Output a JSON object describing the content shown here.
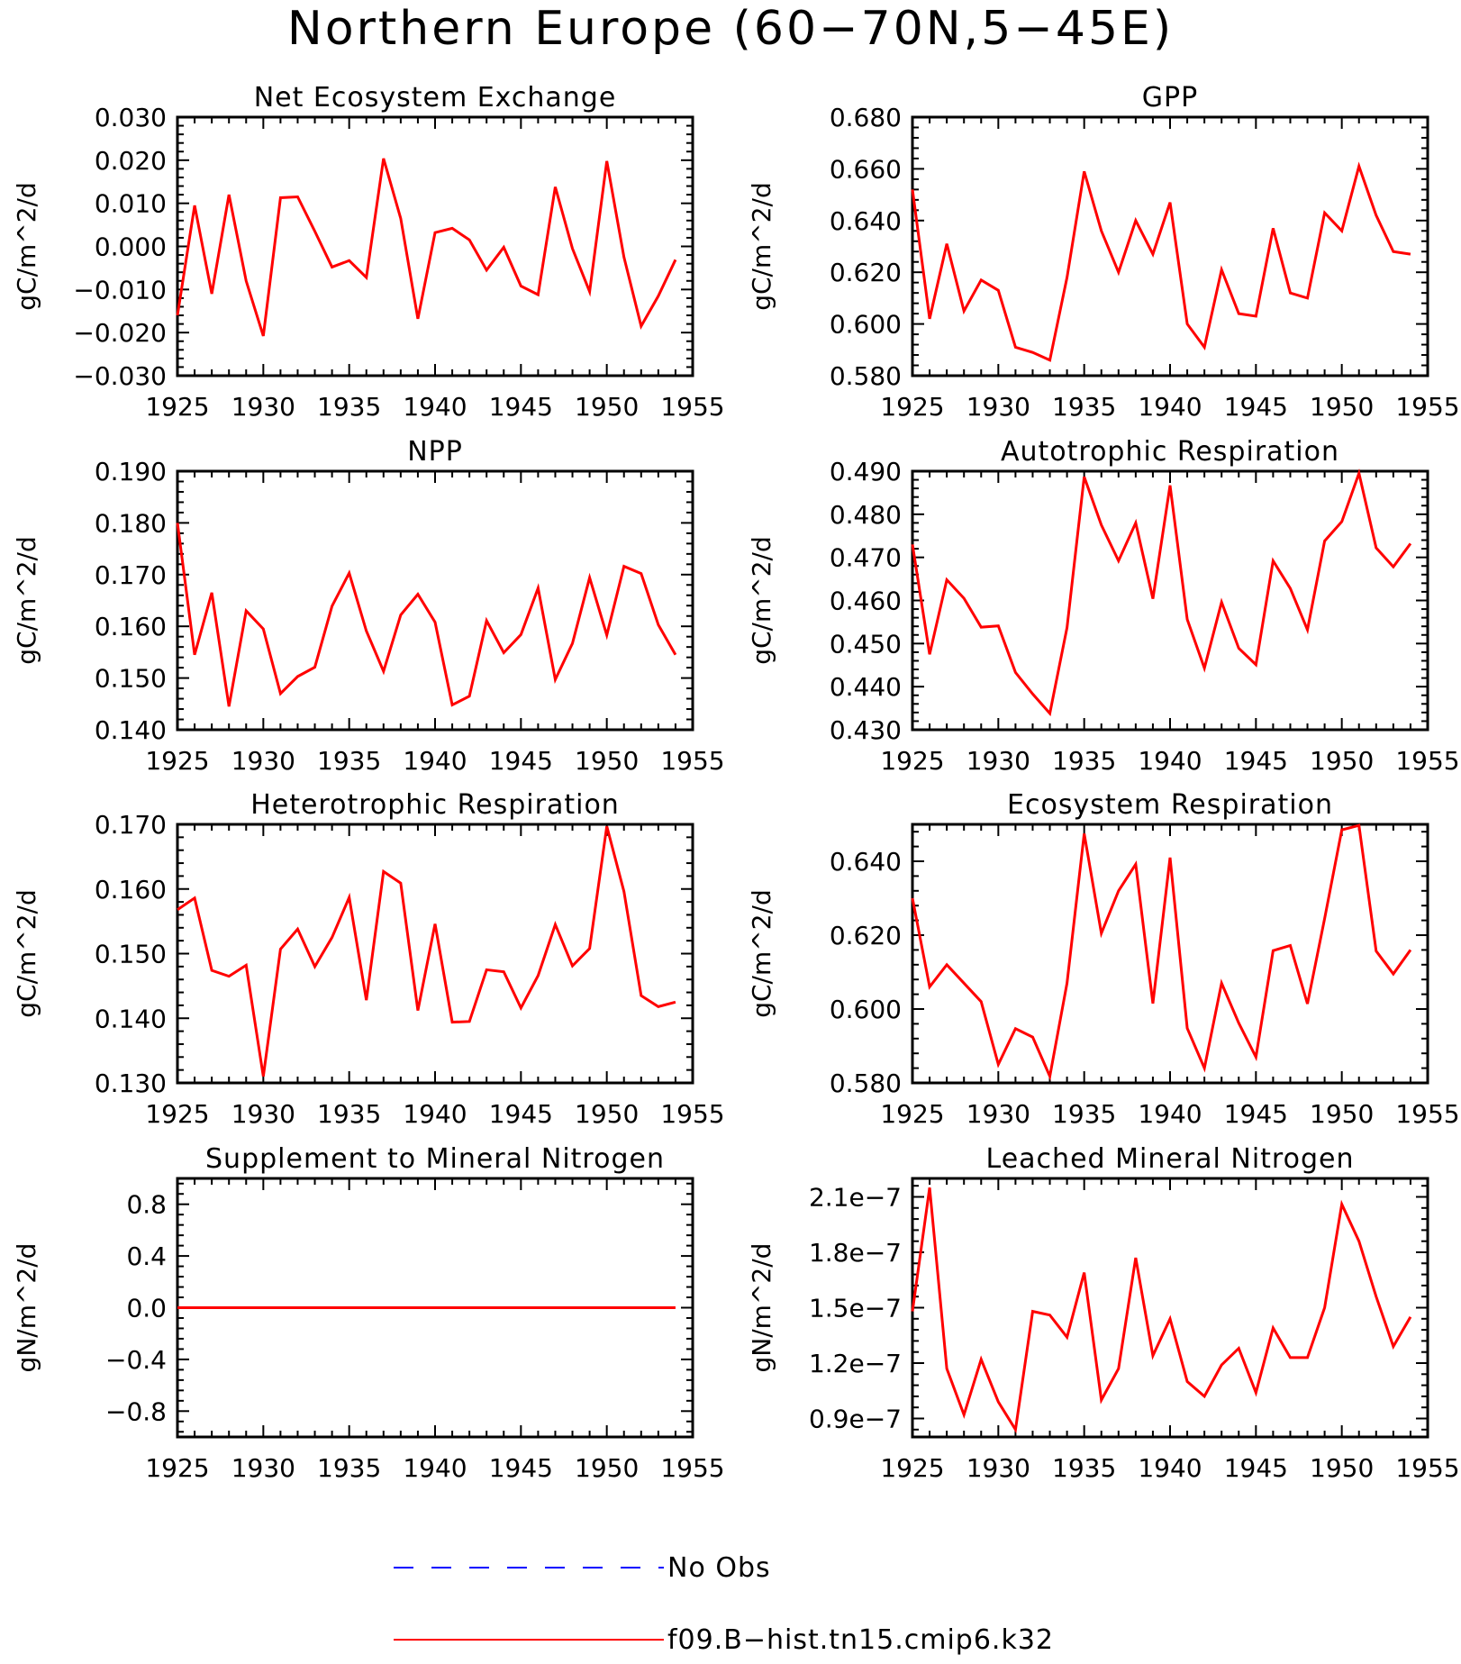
{
  "title": "Northern Europe (60−70N,5−45E)",
  "colors": {
    "model": "#ff0000",
    "obs": "#0000ff",
    "axis": "#000000"
  },
  "legend": {
    "position": "bottom-center",
    "entries": [
      {
        "label": "No Obs",
        "color": "#0000ff",
        "style": "dashed"
      },
      {
        "label": "f09.B−hist.tn15.cmip6.k32",
        "color": "#ff0000",
        "style": "solid"
      }
    ]
  },
  "chart_data": [
    {
      "type": "line",
      "title": "Net Ecosystem Exchange",
      "ylabel": "gC/m^2/d",
      "xlim": [
        1925,
        1955
      ],
      "ylim": [
        -0.03,
        0.03
      ],
      "xticks": [
        1925,
        1930,
        1935,
        1940,
        1945,
        1950,
        1955
      ],
      "yticks": [
        -0.03,
        -0.02,
        -0.01,
        0.0,
        0.01,
        0.02,
        0.03
      ],
      "yticklabels": [
        "−0.030",
        "−0.020",
        "−0.010",
        "0.000",
        "0.010",
        "0.020",
        "0.030"
      ],
      "x": [
        1925,
        1926,
        1927,
        1928,
        1929,
        1930,
        1931,
        1932,
        1933,
        1934,
        1935,
        1936,
        1937,
        1938,
        1939,
        1940,
        1941,
        1942,
        1943,
        1944,
        1945,
        1946,
        1947,
        1948,
        1949,
        1950,
        1951,
        1952,
        1953,
        1954
      ],
      "series": [
        {
          "name": "f09.B−hist.tn15.cmip6.k32",
          "values": [
            -0.016,
            0.0095,
            -0.011,
            0.012,
            -0.008,
            -0.0208,
            0.0113,
            0.0115,
            0.0035,
            -0.0048,
            -0.0033,
            -0.0072,
            0.0204,
            0.0065,
            -0.0168,
            0.0032,
            0.0042,
            0.0015,
            -0.0055,
            -0.0002,
            -0.0092,
            -0.0112,
            0.0138,
            -0.0005,
            -0.0105,
            0.0198,
            -0.0025,
            -0.0185,
            -0.0115,
            -0.0031
          ]
        }
      ]
    },
    {
      "type": "line",
      "title": "GPP",
      "ylabel": "gC/m^2/d",
      "xlim": [
        1925,
        1955
      ],
      "ylim": [
        0.58,
        0.68
      ],
      "xticks": [
        1925,
        1930,
        1935,
        1940,
        1945,
        1950,
        1955
      ],
      "yticks": [
        0.58,
        0.6,
        0.62,
        0.64,
        0.66,
        0.68
      ],
      "yticklabels": [
        "0.580",
        "0.600",
        "0.620",
        "0.640",
        "0.660",
        "0.680"
      ],
      "x": [
        1925,
        1926,
        1927,
        1928,
        1929,
        1930,
        1931,
        1932,
        1933,
        1934,
        1935,
        1936,
        1937,
        1938,
        1939,
        1940,
        1941,
        1942,
        1943,
        1944,
        1945,
        1946,
        1947,
        1948,
        1949,
        1950,
        1951,
        1952,
        1953,
        1954
      ],
      "series": [
        {
          "name": "f09.B−hist.tn15.cmip6.k32",
          "values": [
            0.652,
            0.602,
            0.631,
            0.605,
            0.617,
            0.613,
            0.591,
            0.589,
            0.586,
            0.618,
            0.659,
            0.636,
            0.62,
            0.64,
            0.627,
            0.647,
            0.6,
            0.591,
            0.621,
            0.604,
            0.603,
            0.637,
            0.612,
            0.61,
            0.643,
            0.636,
            0.661,
            0.642,
            0.628,
            0.627
          ]
        }
      ]
    },
    {
      "type": "line",
      "title": "NPP",
      "ylabel": "gC/m^2/d",
      "xlim": [
        1925,
        1955
      ],
      "ylim": [
        0.14,
        0.19
      ],
      "xticks": [
        1925,
        1930,
        1935,
        1940,
        1945,
        1950,
        1955
      ],
      "yticks": [
        0.14,
        0.15,
        0.16,
        0.17,
        0.18,
        0.19
      ],
      "yticklabels": [
        "0.140",
        "0.150",
        "0.160",
        "0.170",
        "0.180",
        "0.190"
      ],
      "x": [
        1925,
        1926,
        1927,
        1928,
        1929,
        1930,
        1931,
        1932,
        1933,
        1934,
        1935,
        1936,
        1937,
        1938,
        1939,
        1940,
        1941,
        1942,
        1943,
        1944,
        1945,
        1946,
        1947,
        1948,
        1949,
        1950,
        1951,
        1952,
        1953,
        1954
      ],
      "series": [
        {
          "name": "f09.B−hist.tn15.cmip6.k32",
          "values": [
            0.18,
            0.1545,
            0.1665,
            0.1445,
            0.163,
            0.1595,
            0.147,
            0.1503,
            0.1521,
            0.1639,
            0.1703,
            0.1591,
            0.1513,
            0.1622,
            0.1662,
            0.1608,
            0.1448,
            0.1465,
            0.1611,
            0.1549,
            0.1584,
            0.1674,
            0.1497,
            0.1567,
            0.1694,
            0.1583,
            0.1716,
            0.1702,
            0.1603,
            0.1545
          ]
        }
      ]
    },
    {
      "type": "line",
      "title": "Autotrophic Respiration",
      "ylabel": "gC/m^2/d",
      "xlim": [
        1925,
        1955
      ],
      "ylim": [
        0.43,
        0.49
      ],
      "xticks": [
        1925,
        1930,
        1935,
        1940,
        1945,
        1950,
        1955
      ],
      "yticks": [
        0.43,
        0.44,
        0.45,
        0.46,
        0.47,
        0.48,
        0.49
      ],
      "yticklabels": [
        "0.430",
        "0.440",
        "0.450",
        "0.460",
        "0.470",
        "0.480",
        "0.490"
      ],
      "x": [
        1925,
        1926,
        1927,
        1928,
        1929,
        1930,
        1931,
        1932,
        1933,
        1934,
        1935,
        1936,
        1937,
        1938,
        1939,
        1940,
        1941,
        1942,
        1943,
        1944,
        1945,
        1946,
        1947,
        1948,
        1949,
        1950,
        1951,
        1952,
        1953,
        1954
      ],
      "series": [
        {
          "name": "f09.B−hist.tn15.cmip6.k32",
          "values": [
            0.473,
            0.4475,
            0.4648,
            0.4605,
            0.4538,
            0.4541,
            0.4433,
            0.4383,
            0.4338,
            0.4537,
            0.4887,
            0.4775,
            0.4692,
            0.478,
            0.4604,
            0.4867,
            0.4556,
            0.4443,
            0.4596,
            0.4489,
            0.4451,
            0.4692,
            0.4628,
            0.4532,
            0.4738,
            0.4783,
            0.4895,
            0.4722,
            0.4678,
            0.4732
          ]
        }
      ]
    },
    {
      "type": "line",
      "title": "Heterotrophic Respiration",
      "ylabel": "gC/m^2/d",
      "xlim": [
        1925,
        1955
      ],
      "ylim": [
        0.13,
        0.17
      ],
      "xticks": [
        1925,
        1930,
        1935,
        1940,
        1945,
        1950,
        1955
      ],
      "yticks": [
        0.13,
        0.14,
        0.15,
        0.16,
        0.17
      ],
      "yticklabels": [
        "0.130",
        "0.140",
        "0.150",
        "0.160",
        "0.170"
      ],
      "x": [
        1925,
        1926,
        1927,
        1928,
        1929,
        1930,
        1931,
        1932,
        1933,
        1934,
        1935,
        1936,
        1937,
        1938,
        1939,
        1940,
        1941,
        1942,
        1943,
        1944,
        1945,
        1946,
        1947,
        1948,
        1949,
        1950,
        1951,
        1952,
        1953,
        1954
      ],
      "series": [
        {
          "name": "f09.B−hist.tn15.cmip6.k32",
          "values": [
            0.1568,
            0.1586,
            0.1474,
            0.1465,
            0.1482,
            0.131,
            0.1507,
            0.1538,
            0.148,
            0.1525,
            0.1587,
            0.1428,
            0.1627,
            0.1609,
            0.1412,
            0.1546,
            0.1394,
            0.1395,
            0.1475,
            0.1472,
            0.1416,
            0.1466,
            0.1545,
            0.1481,
            0.1508,
            0.1697,
            0.1596,
            0.1435,
            0.1418,
            0.1425
          ]
        }
      ]
    },
    {
      "type": "line",
      "title": "Ecosystem Respiration",
      "ylabel": "gC/m^2/d",
      "xlim": [
        1925,
        1955
      ],
      "ylim": [
        0.58,
        0.65
      ],
      "xticks": [
        1925,
        1930,
        1935,
        1940,
        1945,
        1950,
        1955
      ],
      "yticks": [
        0.58,
        0.6,
        0.62,
        0.64
      ],
      "yticklabels": [
        "0.580",
        "0.600",
        "0.620",
        "0.640"
      ],
      "x": [
        1925,
        1926,
        1927,
        1928,
        1929,
        1930,
        1931,
        1932,
        1933,
        1934,
        1935,
        1936,
        1937,
        1938,
        1939,
        1940,
        1941,
        1942,
        1943,
        1944,
        1945,
        1946,
        1947,
        1948,
        1949,
        1950,
        1951,
        1952,
        1953,
        1954
      ],
      "series": [
        {
          "name": "f09.B−hist.tn15.cmip6.k32",
          "values": [
            0.63,
            0.606,
            0.612,
            0.607,
            0.602,
            0.585,
            0.5947,
            0.5924,
            0.5818,
            0.607,
            0.6475,
            0.6205,
            0.632,
            0.6392,
            0.6015,
            0.641,
            0.5948,
            0.584,
            0.607,
            0.5962,
            0.587,
            0.6158,
            0.6172,
            0.6014,
            0.6245,
            0.6485,
            0.6497,
            0.6157,
            0.6095,
            0.616
          ]
        }
      ]
    },
    {
      "type": "line",
      "title": "Supplement to Mineral Nitrogen",
      "ylabel": "gN/m^2/d",
      "xlim": [
        1925,
        1955
      ],
      "ylim": [
        -1.0,
        1.0
      ],
      "xticks": [
        1925,
        1930,
        1935,
        1940,
        1945,
        1950,
        1955
      ],
      "yticks": [
        -0.8,
        -0.4,
        0.0,
        0.4,
        0.8
      ],
      "yticklabels": [
        "−0.8",
        "−0.4",
        "0.0",
        "0.4",
        "0.8"
      ],
      "x": [
        1925,
        1926,
        1927,
        1928,
        1929,
        1930,
        1931,
        1932,
        1933,
        1934,
        1935,
        1936,
        1937,
        1938,
        1939,
        1940,
        1941,
        1942,
        1943,
        1944,
        1945,
        1946,
        1947,
        1948,
        1949,
        1950,
        1951,
        1952,
        1953,
        1954
      ],
      "series": [
        {
          "name": "f09.B−hist.tn15.cmip6.k32",
          "values": [
            0,
            0,
            0,
            0,
            0,
            0,
            0,
            0,
            0,
            0,
            0,
            0,
            0,
            0,
            0,
            0,
            0,
            0,
            0,
            0,
            0,
            0,
            0,
            0,
            0,
            0,
            0,
            0,
            0,
            0
          ]
        }
      ]
    },
    {
      "type": "line",
      "title": "Leached Mineral Nitrogen",
      "ylabel": "gN/m^2/d",
      "xlim": [
        1925,
        1955
      ],
      "ylim": [
        8e-08,
        2.2e-07
      ],
      "xticks": [
        1925,
        1930,
        1935,
        1940,
        1945,
        1950,
        1955
      ],
      "yticks": [
        9e-08,
        1.2e-07,
        1.5e-07,
        1.8e-07,
        2.1e-07
      ],
      "yticklabels": [
        "0.9e−7",
        "1.2e−7",
        "1.5e−7",
        "1.8e−7",
        "2.1e−7"
      ],
      "x": [
        1925,
        1926,
        1927,
        1928,
        1929,
        1930,
        1931,
        1932,
        1933,
        1934,
        1935,
        1936,
        1937,
        1938,
        1939,
        1940,
        1941,
        1942,
        1943,
        1944,
        1945,
        1946,
        1947,
        1948,
        1949,
        1950,
        1951,
        1952,
        1953,
        1954
      ],
      "series": [
        {
          "name": "f09.B−hist.tn15.cmip6.k32",
          "values": [
            1.48e-07,
            2.15e-07,
            1.17e-07,
            9.2e-08,
            1.22e-07,
            9.9e-08,
            8.4e-08,
            1.48e-07,
            1.46e-07,
            1.34e-07,
            1.69e-07,
            1e-07,
            1.17e-07,
            1.77e-07,
            1.24e-07,
            1.44e-07,
            1.1e-07,
            1.02e-07,
            1.19e-07,
            1.28e-07,
            1.04e-07,
            1.39e-07,
            1.23e-07,
            1.23e-07,
            1.5e-07,
            2.06e-07,
            1.86e-07,
            1.56e-07,
            1.29e-07,
            1.45e-07
          ]
        }
      ]
    }
  ]
}
